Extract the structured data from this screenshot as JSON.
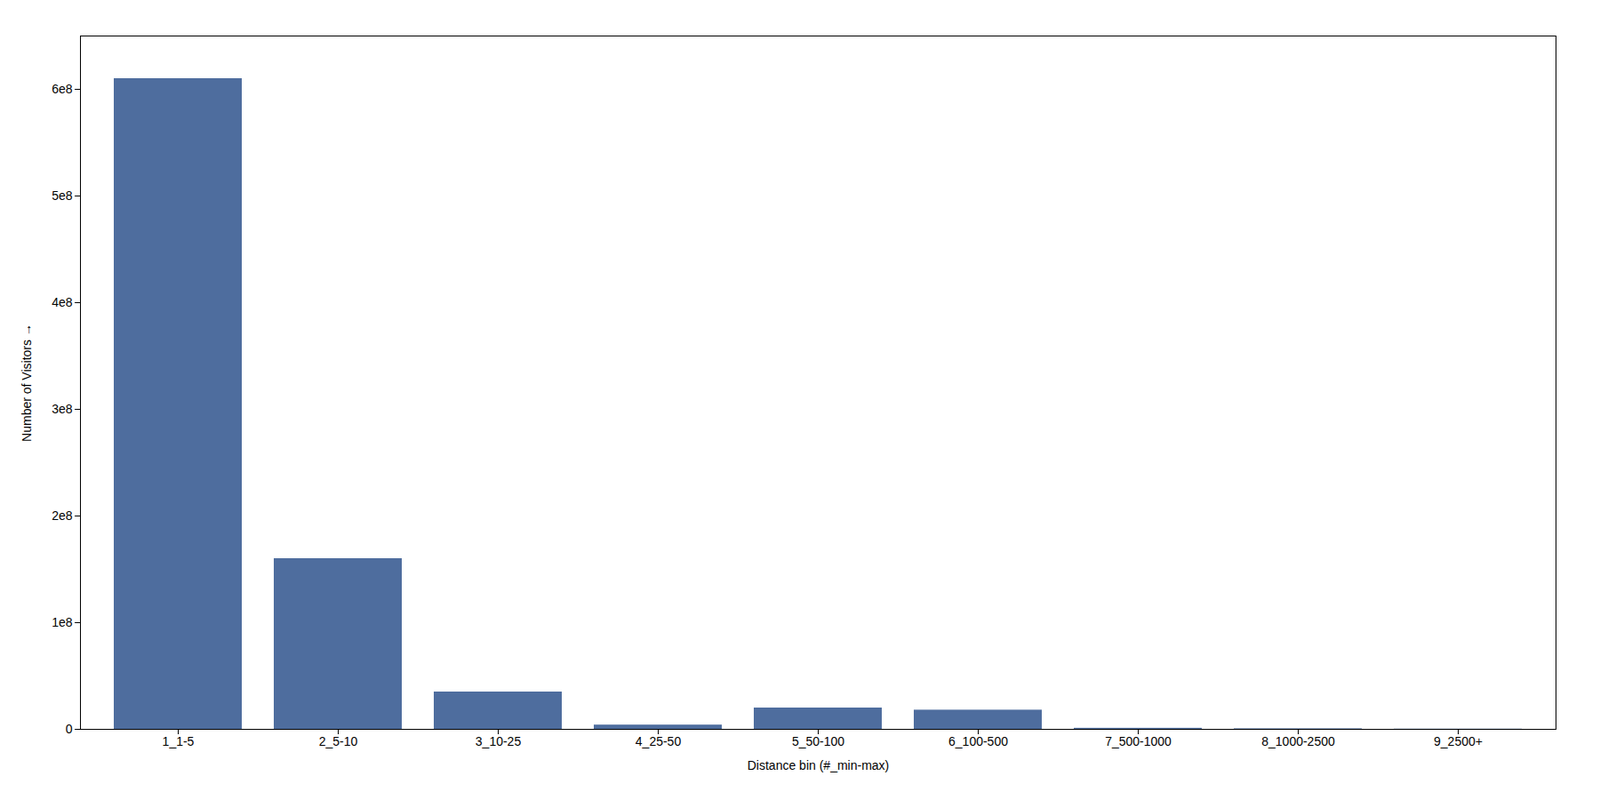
{
  "chart_data": {
    "type": "bar",
    "categories": [
      "1_1-5",
      "2_5-10",
      "3_10-25",
      "4_25-50",
      "5_50-100",
      "6_100-500",
      "7_500-1000",
      "8_1000-2500",
      "9_2500+"
    ],
    "values": [
      610000000,
      160000000,
      35000000,
      4000000,
      20000000,
      18000000,
      1000000,
      500000,
      200000
    ],
    "color": "#4e6d9e",
    "xlabel": "Distance bin (#_min-max)",
    "ylabel": "Number of Visitors",
    "ylim": [
      0,
      650000000
    ],
    "yticks": [
      0,
      {
        "value": 100000000,
        "label": "1e8"
      },
      {
        "value": 200000000,
        "label": "2e8"
      },
      {
        "value": 300000000,
        "label": "3e8"
      },
      {
        "value": 400000000,
        "label": "4e8"
      },
      {
        "value": 500000000,
        "label": "5e8"
      },
      {
        "value": 600000000,
        "label": "6e8"
      }
    ],
    "grid": false
  }
}
